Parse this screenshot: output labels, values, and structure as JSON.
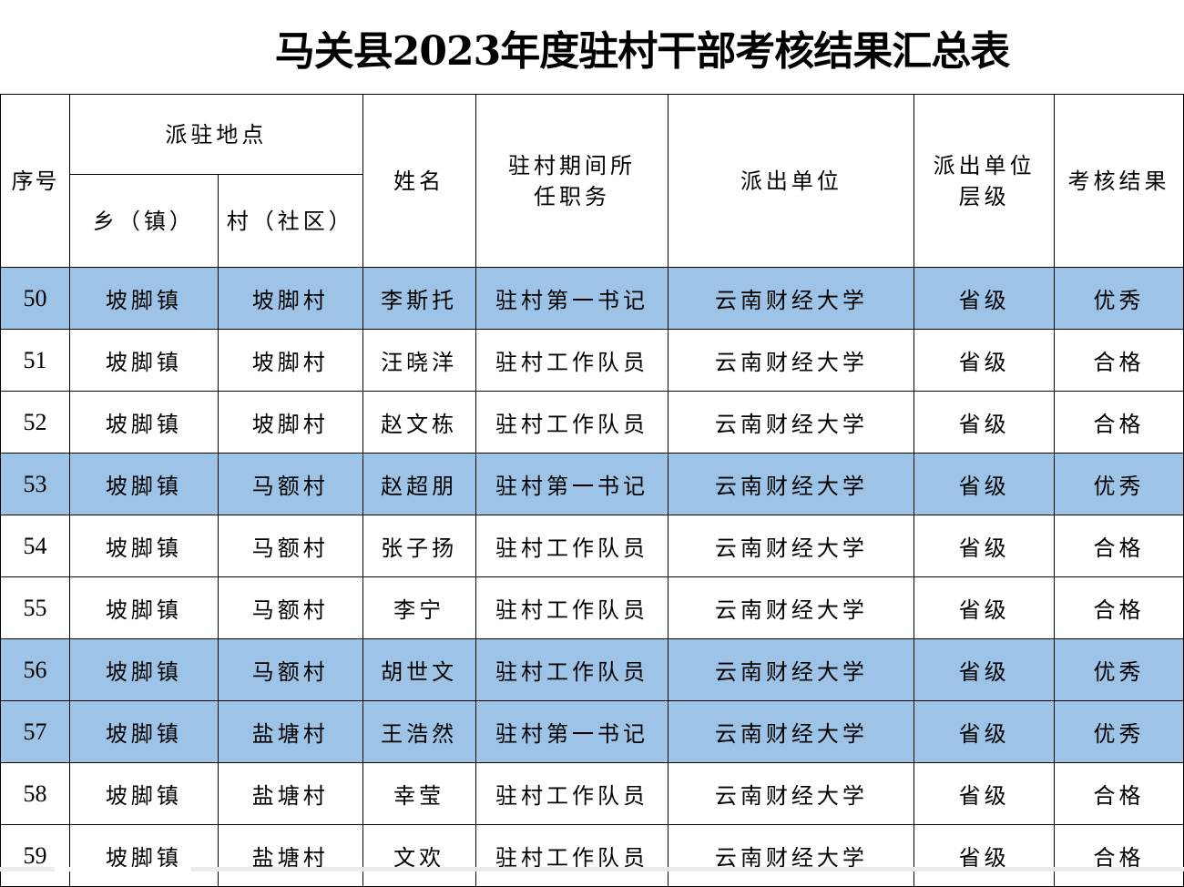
{
  "title": "马关县2023年度驻村干部考核结果汇总表",
  "headers": {
    "seq": "序号",
    "location": "派驻地点",
    "town": "乡（镇）",
    "village": "村（社区）",
    "name": "姓名",
    "position": "驻村期间所任职务",
    "unit": "派出单位",
    "level": "派出单位层级",
    "result": "考核结果"
  },
  "highlight_color": "#9dc3e6",
  "rows": [
    {
      "seq": "50",
      "town": "坡脚镇",
      "village": "坡脚村",
      "name": "李斯托",
      "position": "驻村第一书记",
      "unit": "云南财经大学",
      "level": "省级",
      "result": "优秀",
      "highlight": true
    },
    {
      "seq": "51",
      "town": "坡脚镇",
      "village": "坡脚村",
      "name": "汪晓洋",
      "position": "驻村工作队员",
      "unit": "云南财经大学",
      "level": "省级",
      "result": "合格",
      "highlight": false
    },
    {
      "seq": "52",
      "town": "坡脚镇",
      "village": "坡脚村",
      "name": "赵文栋",
      "position": "驻村工作队员",
      "unit": "云南财经大学",
      "level": "省级",
      "result": "合格",
      "highlight": false
    },
    {
      "seq": "53",
      "town": "坡脚镇",
      "village": "马额村",
      "name": "赵超朋",
      "position": "驻村第一书记",
      "unit": "云南财经大学",
      "level": "省级",
      "result": "优秀",
      "highlight": true
    },
    {
      "seq": "54",
      "town": "坡脚镇",
      "village": "马额村",
      "name": "张子扬",
      "position": "驻村工作队员",
      "unit": "云南财经大学",
      "level": "省级",
      "result": "合格",
      "highlight": false
    },
    {
      "seq": "55",
      "town": "坡脚镇",
      "village": "马额村",
      "name": "李宁",
      "position": "驻村工作队员",
      "unit": "云南财经大学",
      "level": "省级",
      "result": "合格",
      "highlight": false
    },
    {
      "seq": "56",
      "town": "坡脚镇",
      "village": "马额村",
      "name": "胡世文",
      "position": "驻村工作队员",
      "unit": "云南财经大学",
      "level": "省级",
      "result": "优秀",
      "highlight": true
    },
    {
      "seq": "57",
      "town": "坡脚镇",
      "village": "盐塘村",
      "name": "王浩然",
      "position": "驻村第一书记",
      "unit": "云南财经大学",
      "level": "省级",
      "result": "优秀",
      "highlight": true
    },
    {
      "seq": "58",
      "town": "坡脚镇",
      "village": "盐塘村",
      "name": "幸莹",
      "position": "驻村工作队员",
      "unit": "云南财经大学",
      "level": "省级",
      "result": "合格",
      "highlight": false
    },
    {
      "seq": "59",
      "town": "坡脚镇",
      "village": "盐塘村",
      "name": "文欢",
      "position": "驻村工作队员",
      "unit": "云南财经大学",
      "level": "省级",
      "result": "合格",
      "highlight": false
    }
  ]
}
